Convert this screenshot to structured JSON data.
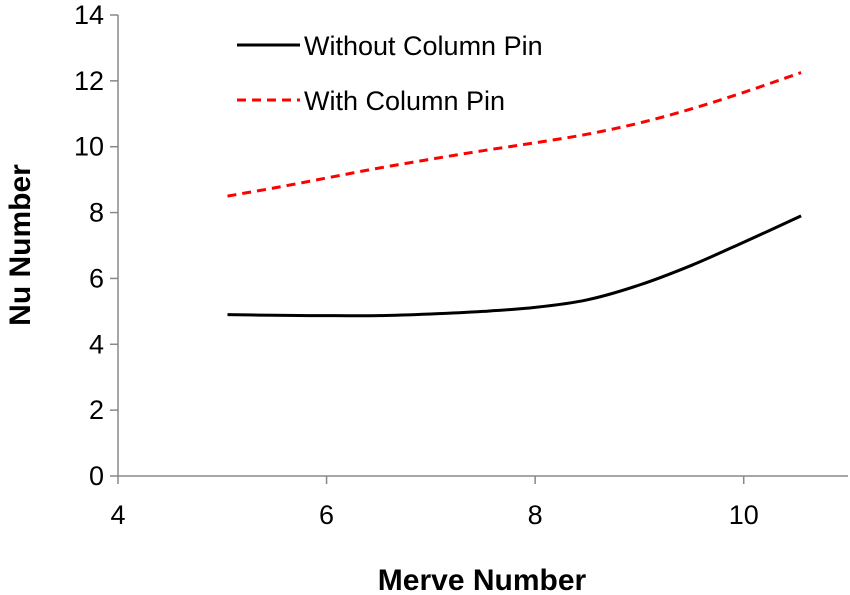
{
  "chart_data": {
    "type": "line",
    "title": "",
    "xlabel": "Merve Number",
    "ylabel": "Nu Number",
    "xlim": [
      4,
      11
    ],
    "ylim": [
      0,
      14
    ],
    "xticks": [
      4,
      6,
      8,
      10
    ],
    "yticks": [
      0,
      2,
      4,
      6,
      8,
      10,
      12,
      14
    ],
    "grid": false,
    "legend_position": "top-center",
    "series": [
      {
        "name": "Without Column Pin",
        "color": "#000000",
        "dash": "solid",
        "x": [
          5.05,
          5.5,
          6.0,
          6.5,
          7.0,
          7.5,
          8.0,
          8.5,
          9.0,
          9.5,
          10.0,
          10.55
        ],
        "y": [
          4.9,
          4.88,
          4.87,
          4.87,
          4.92,
          5.0,
          5.12,
          5.35,
          5.8,
          6.4,
          7.1,
          7.9
        ]
      },
      {
        "name": "With Column Pin",
        "color": "#ff0000",
        "dash": "dashed",
        "x": [
          5.05,
          5.5,
          6.0,
          6.5,
          7.0,
          7.5,
          8.0,
          8.5,
          9.0,
          9.5,
          10.0,
          10.55
        ],
        "y": [
          8.5,
          8.75,
          9.05,
          9.35,
          9.62,
          9.88,
          10.12,
          10.38,
          10.72,
          11.15,
          11.65,
          12.25
        ]
      }
    ]
  }
}
